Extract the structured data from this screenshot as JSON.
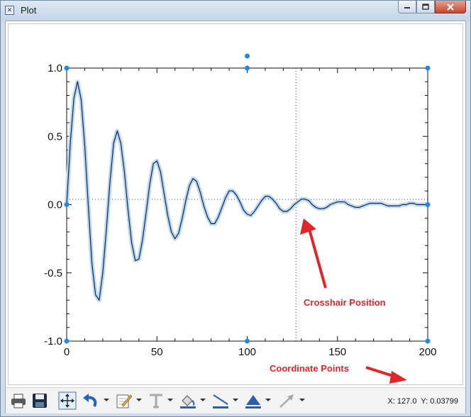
{
  "window": {
    "title": "Plot",
    "app_icon": "plot-app-icon",
    "buttons": [
      "minimize-icon",
      "maximize-icon",
      "close-icon"
    ]
  },
  "annotations": {
    "crosshair_label": "Crosshair Position",
    "coordinate_label": "Coordinate Points",
    "color": "#e1262a"
  },
  "status": {
    "x_label": "X:",
    "x_value": "127.0",
    "y_label": "Y:",
    "y_value": "0.03799"
  },
  "toolbar": {
    "tools": [
      "print-icon",
      "save-icon",
      "fit-view-icon",
      "undo-icon",
      "edit-pen-icon",
      "text-icon",
      "fill-color-icon",
      "line-color-icon",
      "marker-icon",
      "arrow-icon"
    ]
  },
  "colors": {
    "curve": "#102a4a",
    "curve_halo": "#bcd7ef",
    "handles": "#1e88f0",
    "crosshair": "#444444"
  },
  "chart_data": {
    "type": "line",
    "title": "",
    "xlabel": "",
    "ylabel": "",
    "xlim": [
      0,
      200
    ],
    "ylim": [
      -1.0,
      1.0
    ],
    "x_ticks": [
      0,
      50,
      100,
      150,
      200
    ],
    "x_tick_labels": [
      "0",
      "50",
      "100",
      "150",
      "200"
    ],
    "y_ticks": [
      -1.0,
      -0.5,
      0.0,
      0.5,
      1.0
    ],
    "y_tick_labels": [
      "-1.0",
      "-0.5",
      "0.0",
      "0.5",
      "1.0"
    ],
    "grid": false,
    "crosshair": {
      "x": 127.0,
      "y": 0.03799
    },
    "series": [
      {
        "x": [
          0,
          2,
          4,
          6,
          8,
          10,
          12,
          14,
          16,
          18,
          20,
          22,
          24,
          26,
          28,
          30,
          32,
          34,
          36,
          38,
          40,
          42,
          44,
          46,
          48,
          50,
          52,
          54,
          56,
          58,
          60,
          62,
          64,
          66,
          68,
          70,
          72,
          74,
          76,
          78,
          80,
          82,
          84,
          86,
          88,
          90,
          92,
          94,
          96,
          98,
          100,
          102,
          104,
          106,
          108,
          110,
          112,
          114,
          116,
          118,
          120,
          122,
          124,
          126,
          128,
          130,
          132,
          134,
          136,
          138,
          140,
          142,
          144,
          146,
          148,
          150,
          152,
          154,
          156,
          158,
          160,
          162,
          164,
          166,
          168,
          170,
          172,
          174,
          176,
          178,
          180,
          182,
          184,
          186,
          188,
          190,
          192,
          194,
          196,
          198,
          200
        ],
        "y": [
          0.0,
          0.45,
          0.78,
          0.9,
          0.77,
          0.43,
          -0.01,
          -0.43,
          -0.66,
          -0.7,
          -0.5,
          -0.18,
          0.17,
          0.45,
          0.54,
          0.45,
          0.24,
          -0.04,
          -0.28,
          -0.41,
          -0.4,
          -0.26,
          -0.06,
          0.15,
          0.3,
          0.32,
          0.24,
          0.08,
          -0.08,
          -0.2,
          -0.25,
          -0.21,
          -0.1,
          0.03,
          0.14,
          0.19,
          0.17,
          0.09,
          -0.01,
          -0.09,
          -0.14,
          -0.14,
          -0.09,
          -0.02,
          0.05,
          0.1,
          0.1,
          0.07,
          0.02,
          -0.04,
          -0.07,
          -0.08,
          -0.05,
          -0.01,
          0.03,
          0.06,
          0.06,
          0.04,
          0.01,
          -0.03,
          -0.05,
          -0.05,
          -0.03,
          0.0,
          0.02,
          0.04,
          0.04,
          0.03,
          0.0,
          -0.02,
          -0.03,
          -0.03,
          -0.02,
          0.0,
          0.01,
          0.02,
          0.02,
          0.02,
          0.0,
          -0.01,
          -0.02,
          -0.02,
          -0.01,
          0.0,
          0.01,
          0.01,
          0.01,
          0.01,
          0.0,
          -0.01,
          -0.01,
          -0.01,
          -0.01,
          0.0,
          0.0,
          0.01,
          0.01,
          0.0,
          0.0,
          0.0,
          0.0
        ]
      }
    ]
  }
}
